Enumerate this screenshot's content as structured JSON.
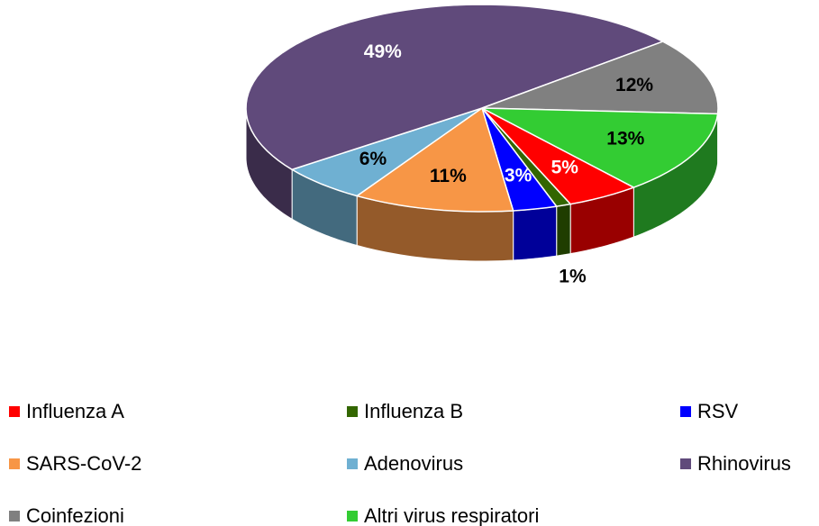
{
  "chart_data": {
    "type": "pie",
    "categories": [
      "Influenza A",
      "Influenza B",
      "RSV",
      "SARS-CoV-2",
      "Adenovirus",
      "Rhinovirus",
      "Coinfezioni",
      "Altri virus respiratori"
    ],
    "values": [
      5,
      1,
      3,
      11,
      6,
      49,
      12,
      13
    ],
    "value_labels": [
      "5%",
      "1%",
      "3%",
      "11%",
      "6%",
      "49%",
      "12%",
      "13%"
    ],
    "colors": [
      "#ff0000",
      "#336600",
      "#0000ff",
      "#f79646",
      "#6fb0d2",
      "#604a7b",
      "#808080",
      "#33cc33"
    ],
    "legend": "bottom"
  }
}
